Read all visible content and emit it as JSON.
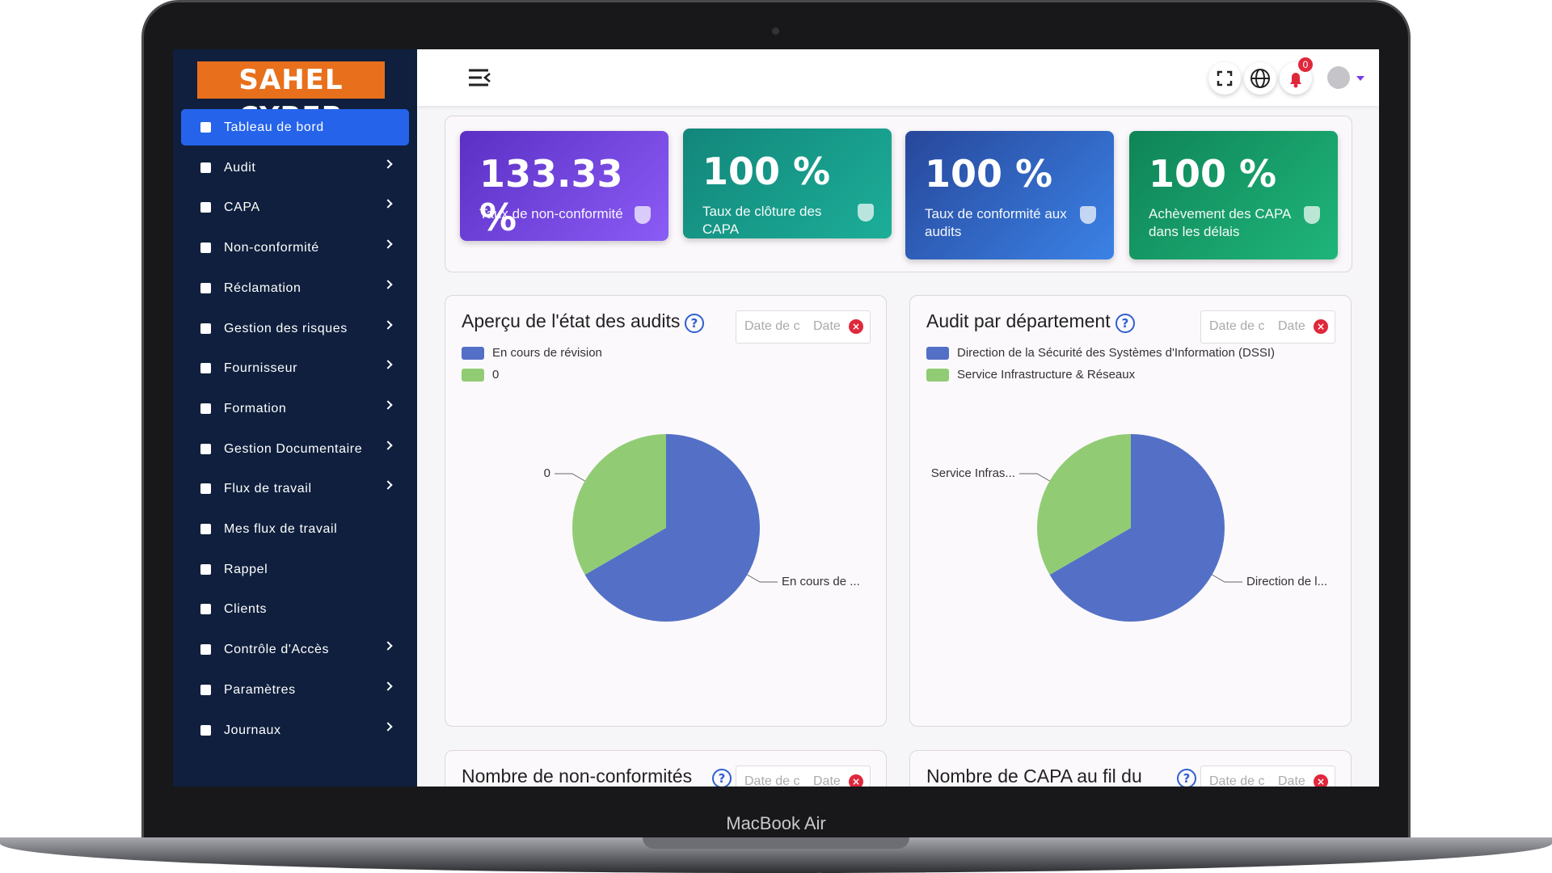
{
  "sidebar": {
    "brand": "SAHEL CYBER",
    "menu": [
      {
        "label": "Tableau de bord",
        "active": true,
        "submenu": false
      },
      {
        "label": "Audit",
        "active": false,
        "submenu": true
      },
      {
        "label": "CAPA",
        "active": false,
        "submenu": true
      },
      {
        "label": "Non-conformité",
        "active": false,
        "submenu": true
      },
      {
        "label": "Réclamation",
        "active": false,
        "submenu": true
      },
      {
        "label": "Gestion des risques",
        "active": false,
        "submenu": true
      },
      {
        "label": "Fournisseur",
        "active": false,
        "submenu": true
      },
      {
        "label": "Formation",
        "active": false,
        "submenu": true
      },
      {
        "label": "Gestion Documentaire",
        "active": false,
        "submenu": true
      },
      {
        "label": "Flux de travail",
        "active": false,
        "submenu": true
      },
      {
        "label": "Mes flux de travail",
        "active": false,
        "submenu": false
      },
      {
        "label": "Rappel",
        "active": false,
        "submenu": false
      },
      {
        "label": "Clients",
        "active": false,
        "submenu": false
      },
      {
        "label": "Contrôle d'Accès",
        "active": false,
        "submenu": true
      },
      {
        "label": "Paramètres",
        "active": false,
        "submenu": true
      },
      {
        "label": "Journaux",
        "active": false,
        "submenu": true
      }
    ]
  },
  "topbar": {
    "notifications": "0"
  },
  "kpis": [
    {
      "value": "133.33 %",
      "label": "Taux de non-conformité",
      "colors": [
        "#5b2fc4",
        "#8b5cf6"
      ]
    },
    {
      "value": "100 %",
      "label": "Taux de clôture des CAPA",
      "colors": [
        "#12867a",
        "#1cae98"
      ]
    },
    {
      "value": "100 %",
      "label": "Taux de conformité aux audits",
      "colors": [
        "#27479a",
        "#3b82e6"
      ]
    },
    {
      "value": "100 %",
      "label": "Achèvement des CAPA dans les délais",
      "colors": [
        "#0f8457",
        "#1fb57a"
      ]
    }
  ],
  "chart_data": [
    {
      "type": "pie",
      "title": "Aperçu de l'état des audits",
      "date_from": "Date de c",
      "date_to": "Date",
      "categories": [
        "En cours de révision",
        "0"
      ],
      "slice_labels": [
        "En cours de ...",
        "0"
      ],
      "values": [
        2,
        1
      ],
      "colors": [
        "#5470c6",
        "#91cc75"
      ]
    },
    {
      "type": "pie",
      "title": "Audit par département",
      "date_from": "Date de c",
      "date_to": "Date",
      "categories": [
        "Direction de la Sécurité des Systèmes d'Information (DSSI)",
        "Service Infrastructure & Réseaux"
      ],
      "slice_labels": [
        "Direction de l...",
        "Service Infras..."
      ],
      "values": [
        2,
        1
      ],
      "colors": [
        "#5470c6",
        "#91cc75"
      ]
    }
  ],
  "bottom_panels": [
    {
      "title": "Nombre de non-conformités",
      "date_from": "Date de c",
      "date_to": "Date"
    },
    {
      "title": "Nombre de CAPA au fil du",
      "date_from": "Date de c",
      "date_to": "Date"
    }
  ],
  "device_label": "MacBook Air"
}
